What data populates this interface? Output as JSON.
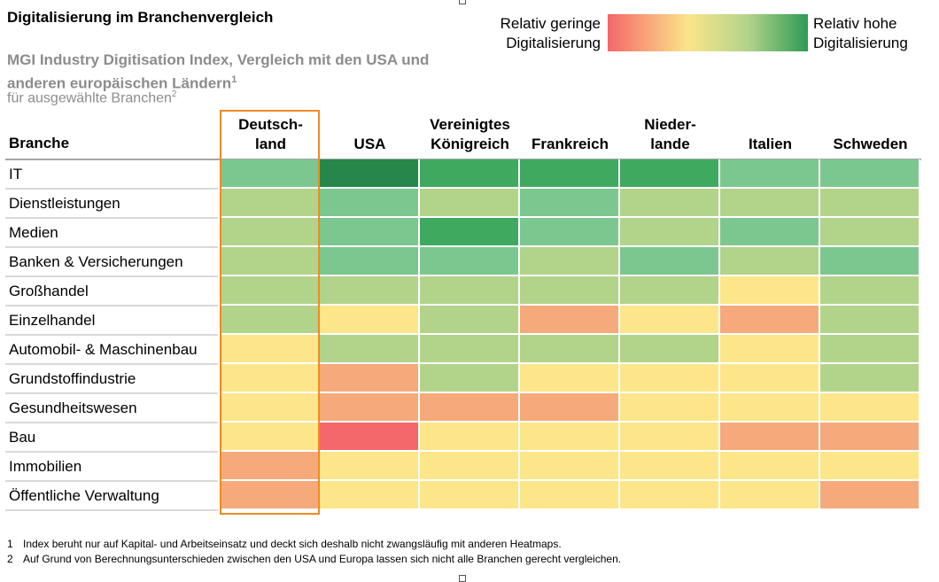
{
  "header": {
    "title": "Digitalisierung im Branchenvergleich",
    "subtitle": "MGI Industry Digitisation Index, Vergleich mit den USA und anderen europäischen Ländern",
    "subtitle_sup": "1",
    "note": "für ausgewählte Branchen",
    "note_sup": "2"
  },
  "legend": {
    "low_label": "Relativ geringe Digitalisierung",
    "high_label": "Relativ hohe Digitalisierung",
    "gradient": [
      "#f4676a",
      "#fbe58a",
      "#b2d48a",
      "#2e9a55"
    ]
  },
  "chart_data": {
    "type": "heatmap",
    "title": "Digitalisierung im Branchenvergleich",
    "row_header": "Branche",
    "columns": [
      "Deutsch-\nland",
      "USA",
      "Vereinigtes\nKönigreich",
      "Frankreich",
      "Nieder-\nlande",
      "Italien",
      "Schweden"
    ],
    "highlighted_column": "Deutsch-\nland",
    "rows": [
      "IT",
      "Dienstleistungen",
      "Medien",
      "Banken & Versicherungen",
      "Großhandel",
      "Einzelhandel",
      "Automobil- & Maschinenbau",
      "Grundstoffindustrie",
      "Gesundheitswesen",
      "Bau",
      "Immobilien",
      "Öffentliche Verwaltung"
    ],
    "scale": {
      "min": 1,
      "max": 6,
      "min_label": "Relativ geringe Digitalisierung",
      "max_label": "Relativ hohe Digitalisierung"
    },
    "values": [
      [
        4,
        6,
        5,
        5,
        5,
        4,
        4
      ],
      [
        3,
        4,
        3,
        4,
        3,
        3,
        3
      ],
      [
        3,
        4,
        5,
        4,
        3,
        4,
        3
      ],
      [
        3,
        4,
        4,
        3,
        4,
        3,
        4
      ],
      [
        3,
        3,
        3,
        3,
        3,
        2,
        3
      ],
      [
        3,
        2,
        3,
        1,
        2,
        1,
        3
      ],
      [
        2,
        3,
        3,
        3,
        3,
        2,
        3
      ],
      [
        2,
        1,
        3,
        2,
        2,
        2,
        3
      ],
      [
        2,
        1,
        1,
        1,
        2,
        2,
        2
      ],
      [
        2,
        0,
        2,
        2,
        2,
        1,
        1
      ],
      [
        1,
        2,
        2,
        2,
        2,
        2,
        2
      ],
      [
        1,
        2,
        2,
        2,
        2,
        2,
        1
      ]
    ],
    "level_colors": [
      "#f4686b",
      "#f6a97b",
      "#fde68a",
      "#b2d48a",
      "#7cc790",
      "#3fa95f",
      "#27874a"
    ]
  },
  "footnotes": [
    {
      "num": "1",
      "text": "Index beruht nur auf Kapital- und Arbeitseinsatz und deckt sich deshalb nicht zwangsläufig mit anderen Heatmaps."
    },
    {
      "num": "2",
      "text": "Auf Grund von Berechnungsunterschieden zwischen den USA und Europa lassen sich nicht alle Branchen gerecht vergleichen."
    }
  ]
}
